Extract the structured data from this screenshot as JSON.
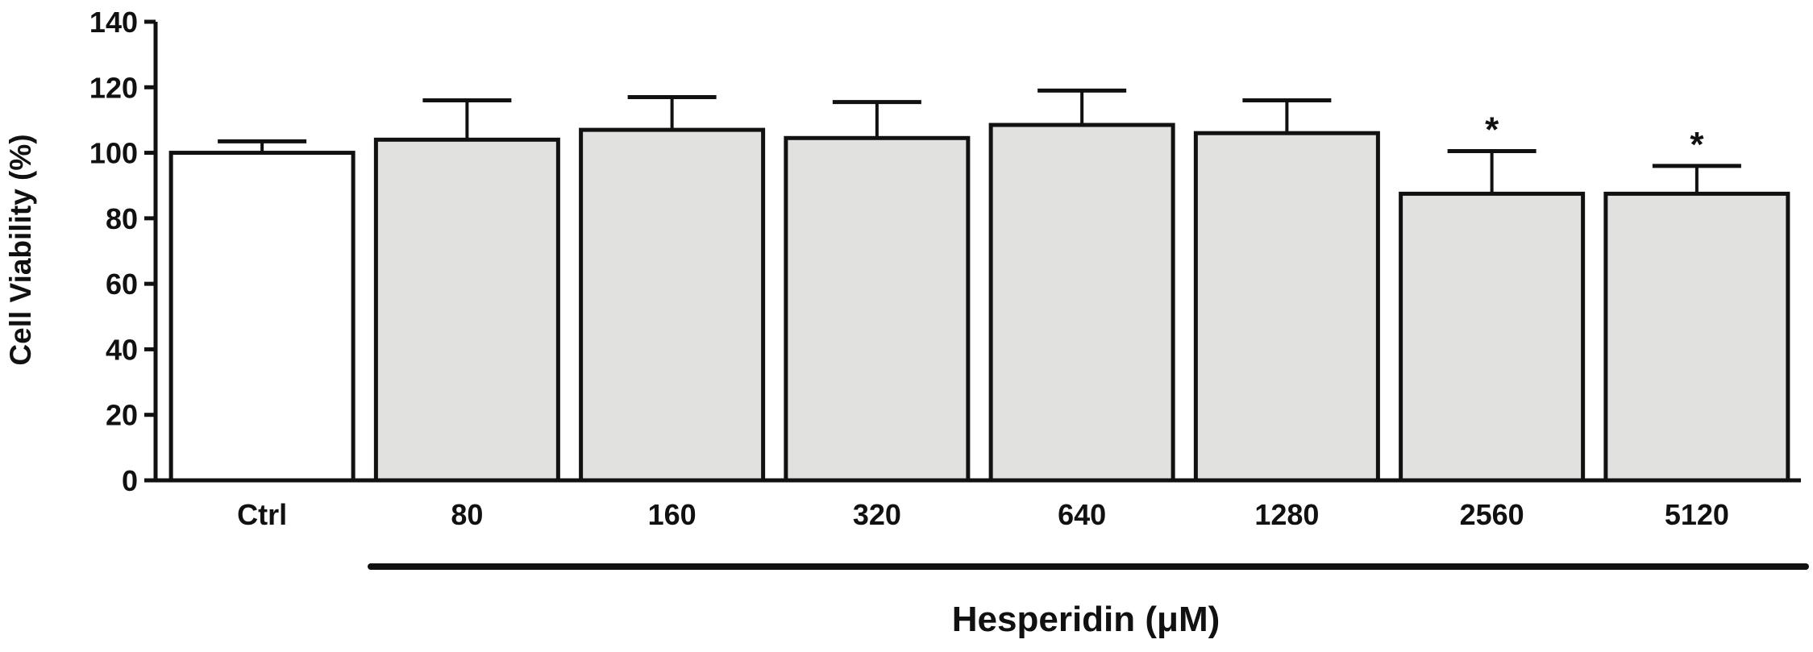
{
  "chart_data": {
    "type": "bar",
    "categories": [
      "Ctrl",
      "80",
      "160",
      "320",
      "640",
      "1280",
      "2560",
      "5120"
    ],
    "values": [
      100,
      104,
      107,
      104.5,
      108.5,
      106,
      87.5,
      87.5
    ],
    "error_upper": [
      103.5,
      116,
      117,
      115.5,
      119,
      116,
      100.5,
      96
    ],
    "significance": [
      "",
      "",
      "",
      "",
      "",
      "",
      "*",
      "*"
    ],
    "title": "",
    "xlabel": "Hesperidin (μM)",
    "ylabel": "Cell Viability (%)",
    "ylim": [
      0,
      140
    ],
    "yticks": [
      0,
      20,
      40,
      60,
      80,
      100,
      120,
      140
    ],
    "grid": false,
    "colors": {
      "control_bar": "#ffffff",
      "treatment_bar": "#e1e2e0",
      "stroke": "#111111"
    }
  }
}
